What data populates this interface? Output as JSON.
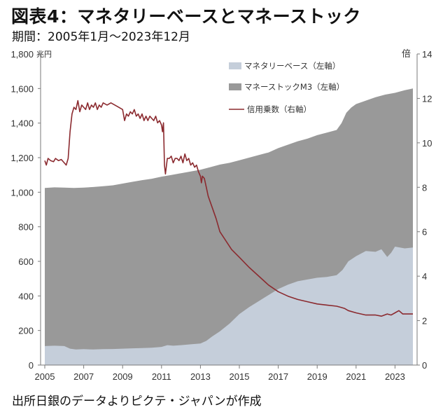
{
  "title": "図表4：マネタリーベースとマネーストック",
  "subtitle": "期間：2005年1月～2023年12月",
  "source": "出所日銀のデータよりピクテ・ジャパンが作成",
  "chart_data": {
    "type": "area",
    "left_unit": "兆円",
    "right_unit": "倍",
    "left_axis": {
      "min": 0,
      "max": 1800,
      "ticks": [
        "0",
        "200",
        "400",
        "600",
        "800",
        "1,000",
        "1,200",
        "1,400",
        "1,600",
        "1,800"
      ]
    },
    "right_axis": {
      "min": 0,
      "max": 14,
      "ticks": [
        "0",
        "2",
        "4",
        "6",
        "8",
        "10",
        "12",
        "14"
      ]
    },
    "x_axis": {
      "min": 2005,
      "max": 2023.92,
      "ticks": [
        "2005",
        "2007",
        "2009",
        "2011",
        "2013",
        "2015",
        "2017",
        "2019",
        "2021",
        "2023"
      ]
    },
    "colors": {
      "base": "#c5ceda",
      "money": "#999999",
      "multiplier": "#8b2a2f"
    },
    "legend": [
      {
        "key": "base",
        "label": "マネタリーベース（左軸）"
      },
      {
        "key": "money",
        "label": "マネーストックM3（左軸）"
      },
      {
        "key": "multiplier",
        "label": "信用乗数（右軸）"
      }
    ],
    "series": [
      {
        "name": "マネーストックM3（左軸）",
        "axis": "left",
        "kind": "area",
        "points": [
          [
            2005,
            1025
          ],
          [
            2005.5,
            1028
          ],
          [
            2006,
            1027
          ],
          [
            2006.5,
            1025
          ],
          [
            2007,
            1027
          ],
          [
            2007.5,
            1030
          ],
          [
            2008,
            1035
          ],
          [
            2008.5,
            1040
          ],
          [
            2009,
            1050
          ],
          [
            2009.5,
            1060
          ],
          [
            2010,
            1070
          ],
          [
            2010.5,
            1078
          ],
          [
            2011,
            1090
          ],
          [
            2011.5,
            1100
          ],
          [
            2012,
            1110
          ],
          [
            2012.5,
            1120
          ],
          [
            2013,
            1130
          ],
          [
            2013.5,
            1145
          ],
          [
            2014,
            1160
          ],
          [
            2014.5,
            1170
          ],
          [
            2015,
            1185
          ],
          [
            2015.5,
            1200
          ],
          [
            2016,
            1215
          ],
          [
            2016.5,
            1230
          ],
          [
            2017,
            1255
          ],
          [
            2017.5,
            1275
          ],
          [
            2018,
            1295
          ],
          [
            2018.5,
            1310
          ],
          [
            2019,
            1330
          ],
          [
            2019.5,
            1345
          ],
          [
            2020,
            1360
          ],
          [
            2020.25,
            1400
          ],
          [
            2020.5,
            1460
          ],
          [
            2020.75,
            1490
          ],
          [
            2021,
            1510
          ],
          [
            2021.5,
            1530
          ],
          [
            2022,
            1550
          ],
          [
            2022.5,
            1565
          ],
          [
            2023,
            1575
          ],
          [
            2023.5,
            1590
          ],
          [
            2023.92,
            1600
          ]
        ]
      },
      {
        "name": "マネタリーベース（左軸）",
        "axis": "left",
        "kind": "area",
        "points": [
          [
            2005,
            110
          ],
          [
            2005.5,
            112
          ],
          [
            2006,
            110
          ],
          [
            2006.3,
            95
          ],
          [
            2006.6,
            90
          ],
          [
            2007,
            92
          ],
          [
            2007.5,
            90
          ],
          [
            2008,
            92
          ],
          [
            2008.5,
            93
          ],
          [
            2009,
            95
          ],
          [
            2009.5,
            97
          ],
          [
            2010,
            98
          ],
          [
            2010.5,
            100
          ],
          [
            2011,
            105
          ],
          [
            2011.3,
            115
          ],
          [
            2011.6,
            112
          ],
          [
            2012,
            115
          ],
          [
            2012.5,
            120
          ],
          [
            2013,
            125
          ],
          [
            2013.3,
            140
          ],
          [
            2013.6,
            165
          ],
          [
            2014,
            195
          ],
          [
            2014.5,
            240
          ],
          [
            2015,
            295
          ],
          [
            2015.5,
            335
          ],
          [
            2016,
            370
          ],
          [
            2016.5,
            405
          ],
          [
            2017,
            440
          ],
          [
            2017.5,
            465
          ],
          [
            2018,
            485
          ],
          [
            2018.5,
            495
          ],
          [
            2019,
            505
          ],
          [
            2019.5,
            510
          ],
          [
            2020,
            520
          ],
          [
            2020.3,
            550
          ],
          [
            2020.6,
            600
          ],
          [
            2021,
            630
          ],
          [
            2021.5,
            660
          ],
          [
            2022,
            655
          ],
          [
            2022.3,
            670
          ],
          [
            2022.6,
            625
          ],
          [
            2022.8,
            650
          ],
          [
            2023,
            685
          ],
          [
            2023.5,
            675
          ],
          [
            2023.92,
            680
          ]
        ]
      },
      {
        "name": "信用乗数（右軸）",
        "axis": "right",
        "kind": "line",
        "points": [
          [
            2005,
            9.2
          ],
          [
            2005.08,
            9.0
          ],
          [
            2005.17,
            9.3
          ],
          [
            2005.3,
            9.2
          ],
          [
            2005.45,
            9.15
          ],
          [
            2005.55,
            9.3
          ],
          [
            2005.7,
            9.2
          ],
          [
            2005.85,
            9.25
          ],
          [
            2006,
            9.1
          ],
          [
            2006.1,
            9.0
          ],
          [
            2006.2,
            9.3
          ],
          [
            2006.3,
            10.5
          ],
          [
            2006.4,
            11.3
          ],
          [
            2006.5,
            11.6
          ],
          [
            2006.6,
            11.5
          ],
          [
            2006.7,
            11.9
          ],
          [
            2006.8,
            11.4
          ],
          [
            2006.9,
            11.7
          ],
          [
            2007,
            11.6
          ],
          [
            2007.1,
            11.5
          ],
          [
            2007.2,
            11.8
          ],
          [
            2007.3,
            11.5
          ],
          [
            2007.4,
            11.7
          ],
          [
            2007.5,
            11.6
          ],
          [
            2007.6,
            11.8
          ],
          [
            2007.7,
            11.5
          ],
          [
            2007.8,
            11.7
          ],
          [
            2007.9,
            11.6
          ],
          [
            2008,
            11.8
          ],
          [
            2008.2,
            11.7
          ],
          [
            2008.4,
            11.8
          ],
          [
            2008.6,
            11.7
          ],
          [
            2008.8,
            11.6
          ],
          [
            2009,
            11.5
          ],
          [
            2009.1,
            11.0
          ],
          [
            2009.2,
            11.3
          ],
          [
            2009.3,
            11.2
          ],
          [
            2009.4,
            11.4
          ],
          [
            2009.5,
            11.3
          ],
          [
            2009.6,
            11.5
          ],
          [
            2009.7,
            11.2
          ],
          [
            2009.8,
            11.3
          ],
          [
            2009.9,
            11.1
          ],
          [
            2010,
            11.3
          ],
          [
            2010.1,
            11.0
          ],
          [
            2010.2,
            11.2
          ],
          [
            2010.3,
            11.0
          ],
          [
            2010.4,
            11.2
          ],
          [
            2010.5,
            11.1
          ],
          [
            2010.6,
            11.0
          ],
          [
            2010.7,
            11.2
          ],
          [
            2010.8,
            10.9
          ],
          [
            2010.9,
            11.0
          ],
          [
            2011,
            10.8
          ],
          [
            2011.05,
            10.5
          ],
          [
            2011.1,
            10.9
          ],
          [
            2011.15,
            9.0
          ],
          [
            2011.2,
            8.6
          ],
          [
            2011.3,
            9.3
          ],
          [
            2011.4,
            9.3
          ],
          [
            2011.5,
            9.4
          ],
          [
            2011.6,
            9.1
          ],
          [
            2011.7,
            9.3
          ],
          [
            2011.8,
            9.3
          ],
          [
            2011.9,
            9.2
          ],
          [
            2012,
            9.4
          ],
          [
            2012.1,
            9.1
          ],
          [
            2012.2,
            9.5
          ],
          [
            2012.3,
            9.2
          ],
          [
            2012.4,
            9.3
          ],
          [
            2012.5,
            9.0
          ],
          [
            2012.6,
            9.1
          ],
          [
            2012.7,
            8.9
          ],
          [
            2012.8,
            9.0
          ],
          [
            2012.9,
            8.7
          ],
          [
            2013,
            8.5
          ],
          [
            2013.05,
            8.2
          ],
          [
            2013.1,
            8.5
          ],
          [
            2013.2,
            8.4
          ],
          [
            2013.3,
            8.0
          ],
          [
            2013.4,
            7.6
          ],
          [
            2013.6,
            7.1
          ],
          [
            2013.8,
            6.6
          ],
          [
            2014,
            6.0
          ],
          [
            2014.3,
            5.6
          ],
          [
            2014.6,
            5.2
          ],
          [
            2015,
            4.85
          ],
          [
            2015.5,
            4.4
          ],
          [
            2016,
            4.0
          ],
          [
            2016.5,
            3.6
          ],
          [
            2017,
            3.3
          ],
          [
            2017.5,
            3.1
          ],
          [
            2018,
            2.95
          ],
          [
            2018.5,
            2.85
          ],
          [
            2019,
            2.75
          ],
          [
            2019.5,
            2.7
          ],
          [
            2020,
            2.65
          ],
          [
            2020.2,
            2.6
          ],
          [
            2020.4,
            2.55
          ],
          [
            2020.6,
            2.45
          ],
          [
            2021,
            2.35
          ],
          [
            2021.5,
            2.25
          ],
          [
            2022,
            2.25
          ],
          [
            2022.3,
            2.2
          ],
          [
            2022.6,
            2.3
          ],
          [
            2022.8,
            2.25
          ],
          [
            2023,
            2.35
          ],
          [
            2023.2,
            2.45
          ],
          [
            2023.4,
            2.3
          ],
          [
            2023.6,
            2.3
          ],
          [
            2023.92,
            2.3
          ]
        ]
      }
    ]
  }
}
